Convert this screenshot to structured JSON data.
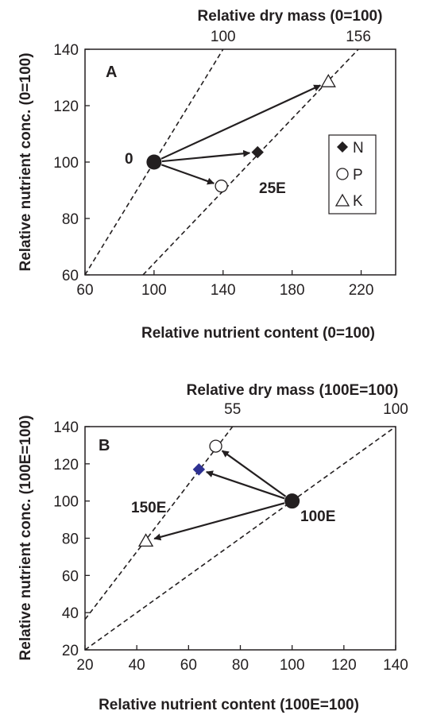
{
  "chart_data": [
    {
      "type": "scatter",
      "panel_label": "A",
      "xlabel": "Relative nutrient content (0=100)",
      "ylabel": "Relative nutrient conc. (0=100)",
      "top_axis_title": "Relative dry mass (0=100)",
      "xlim": [
        60,
        240
      ],
      "ylim": [
        60,
        140
      ],
      "x_ticks": [
        "60",
        "100",
        "140",
        "180",
        "220"
      ],
      "y_ticks": [
        "60",
        "80",
        "100",
        "120",
        "140"
      ],
      "isolines": [
        {
          "label": "100",
          "dry_mass": 100
        },
        {
          "label": "156",
          "dry_mass": 156
        }
      ],
      "origin_point": {
        "label": "0",
        "x": 100,
        "y": 100
      },
      "points": [
        {
          "nutrient": "N",
          "marker": "diamond",
          "x": 160,
          "y": 103.5,
          "color": "#231f20"
        },
        {
          "nutrient": "P",
          "marker": "circle",
          "x": 139,
          "y": 91.5,
          "color": "#ffffff"
        },
        {
          "nutrient": "K",
          "marker": "triangle",
          "x": 201,
          "y": 128.5,
          "color": "#ffffff"
        }
      ],
      "treatment_label": "25E",
      "legend": {
        "position": "right",
        "entries": [
          "N",
          "P",
          "K"
        ]
      },
      "grid": false
    },
    {
      "type": "scatter",
      "panel_label": "B",
      "xlabel": "Relative nutrient content (100E=100)",
      "ylabel": "Relative nutrient conc. (100E=100)",
      "top_axis_title": "Relative dry mass (100E=100)",
      "xlim": [
        20,
        140
      ],
      "ylim": [
        20,
        140
      ],
      "x_ticks": [
        "20",
        "40",
        "60",
        "80",
        "100",
        "120",
        "140"
      ],
      "y_ticks": [
        "20",
        "40",
        "60",
        "80",
        "100",
        "120",
        "140"
      ],
      "isolines": [
        {
          "label": "55",
          "dry_mass": 55
        },
        {
          "label": "100",
          "dry_mass": 100
        }
      ],
      "origin_point": {
        "label": "100E",
        "x": 100,
        "y": 100
      },
      "points": [
        {
          "nutrient": "N",
          "marker": "diamond",
          "x": 64,
          "y": 117,
          "color": "#2e3192"
        },
        {
          "nutrient": "P",
          "marker": "circle",
          "x": 70.5,
          "y": 129.5,
          "color": "#ffffff"
        },
        {
          "nutrient": "K",
          "marker": "triangle",
          "x": 43.5,
          "y": 78.5,
          "color": "#ffffff"
        }
      ],
      "treatment_label": "150E",
      "grid": false
    }
  ]
}
